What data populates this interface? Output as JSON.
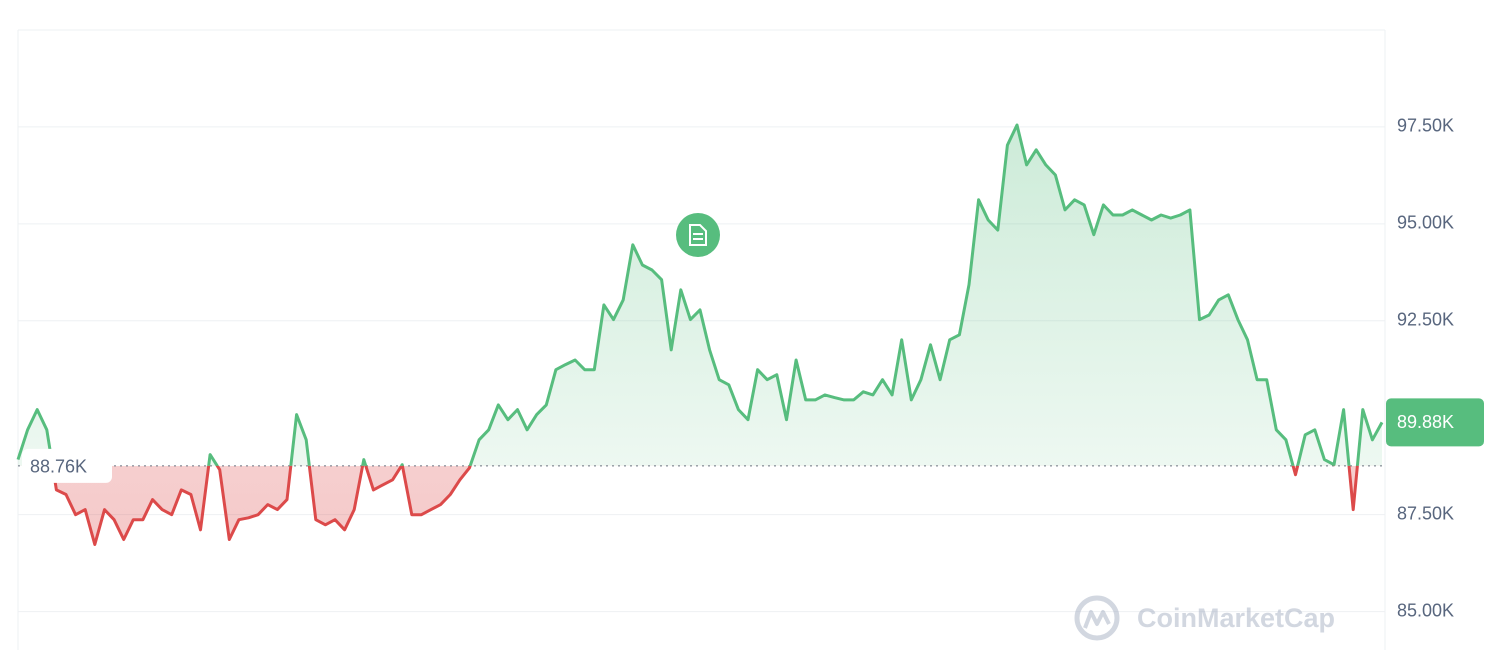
{
  "chart_data": {
    "type": "line",
    "values": [
      88920,
      89690,
      90210,
      89690,
      88140,
      88020,
      87500,
      87630,
      86730,
      87630,
      87370,
      86860,
      87370,
      87370,
      87890,
      87630,
      87500,
      88140,
      88020,
      87110,
      89050,
      88660,
      86860,
      87370,
      87420,
      87500,
      87760,
      87630,
      87890,
      90080,
      89430,
      87370,
      87240,
      87370,
      87110,
      87630,
      88920,
      88140,
      88270,
      88400,
      88790,
      87500,
      87500,
      87630,
      87760,
      88020,
      88400,
      88710,
      89430,
      89690,
      90330,
      89950,
      90210,
      89690,
      90080,
      90330,
      91240,
      91370,
      91490,
      91240,
      91240,
      92910,
      92530,
      93040,
      94460,
      93940,
      93810,
      93560,
      91750,
      93300,
      92530,
      92780,
      91750,
      90980,
      90850,
      90210,
      89950,
      91240,
      90980,
      91110,
      89950,
      91490,
      90460,
      90460,
      90590,
      90520,
      90460,
      90460,
      90670,
      90590,
      90980,
      90590,
      92010,
      90460,
      90980,
      91880,
      90980,
      92010,
      92140,
      93430,
      95620,
      95100,
      94840,
      97030,
      97550,
      96520,
      96910,
      96520,
      96260,
      95360,
      95620,
      95490,
      94720,
      95490,
      95230,
      95230,
      95360,
      95230,
      95100,
      95230,
      95150,
      95230,
      95360,
      92530,
      92650,
      93040,
      93170,
      92530,
      92010,
      90980,
      90980,
      89690,
      89430,
      88530,
      89560,
      89690,
      88920,
      88790,
      90210,
      87630,
      90210,
      89430,
      89880
    ],
    "up_color": "#57bd7e",
    "down_color": "#dc4a4a",
    "baseline": {
      "value": 88760,
      "label": "88.76K"
    },
    "current_price": {
      "value": 89880,
      "label": "89.88K"
    },
    "ylim": [
      84500,
      100000
    ],
    "yticks": [
      {
        "value": 85000,
        "label": "85.00K"
      },
      {
        "value": 87500,
        "label": "87.50K"
      },
      {
        "value": 92500,
        "label": "92.50K"
      },
      {
        "value": 95000,
        "label": "95.00K"
      },
      {
        "value": 97500,
        "label": "97.50K"
      }
    ],
    "grid": true,
    "watermark": "CoinMarketCap"
  }
}
